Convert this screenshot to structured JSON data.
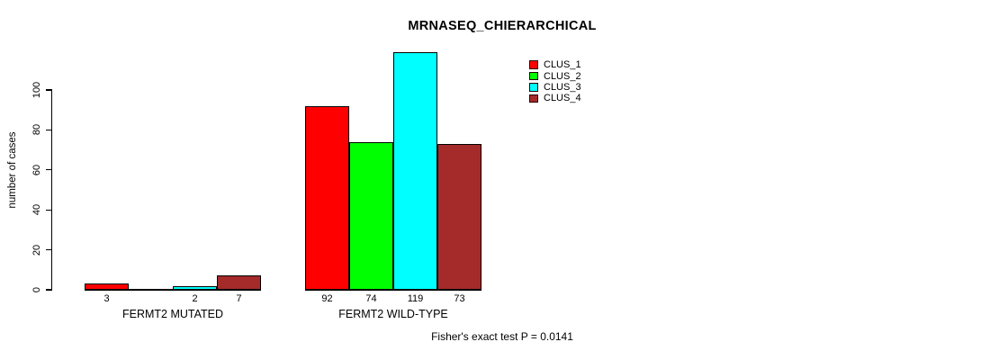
{
  "chart_data": {
    "type": "bar",
    "title": "MRNASEQ_CHIERARCHICAL",
    "ylabel": "number of cases",
    "xlabel": "",
    "yticks": [
      0,
      20,
      40,
      60,
      80,
      100
    ],
    "ylim": [
      0,
      100
    ],
    "grid": false,
    "legend_position": "top-right",
    "series_names": [
      "CLUS_1",
      "CLUS_2",
      "CLUS_3",
      "CLUS_4"
    ],
    "series_colors": [
      "#ff0000",
      "#00ff00",
      "#00ffff",
      "#a52a2a"
    ],
    "groups": [
      {
        "label": "FERMT2 MUTATED",
        "values": [
          3,
          0,
          2,
          7
        ],
        "bar_labels": [
          "3",
          "",
          "2",
          "7"
        ]
      },
      {
        "label": "FERMT2 WILD-TYPE",
        "values": [
          92,
          74,
          119,
          73
        ],
        "bar_labels": [
          "92",
          "74",
          "119",
          "73"
        ]
      }
    ],
    "legend": [
      {
        "label": "CLUS_1",
        "color": "#ff0000"
      },
      {
        "label": "CLUS_2",
        "color": "#00ff00"
      },
      {
        "label": "CLUS_3",
        "color": "#00ffff"
      },
      {
        "label": "CLUS_4",
        "color": "#a52a2a"
      }
    ],
    "annotation": "Fisher's exact test P = 0.0141"
  },
  "colors": {
    "background": "#ffffff",
    "axis": "#000000",
    "text": "#000000"
  }
}
